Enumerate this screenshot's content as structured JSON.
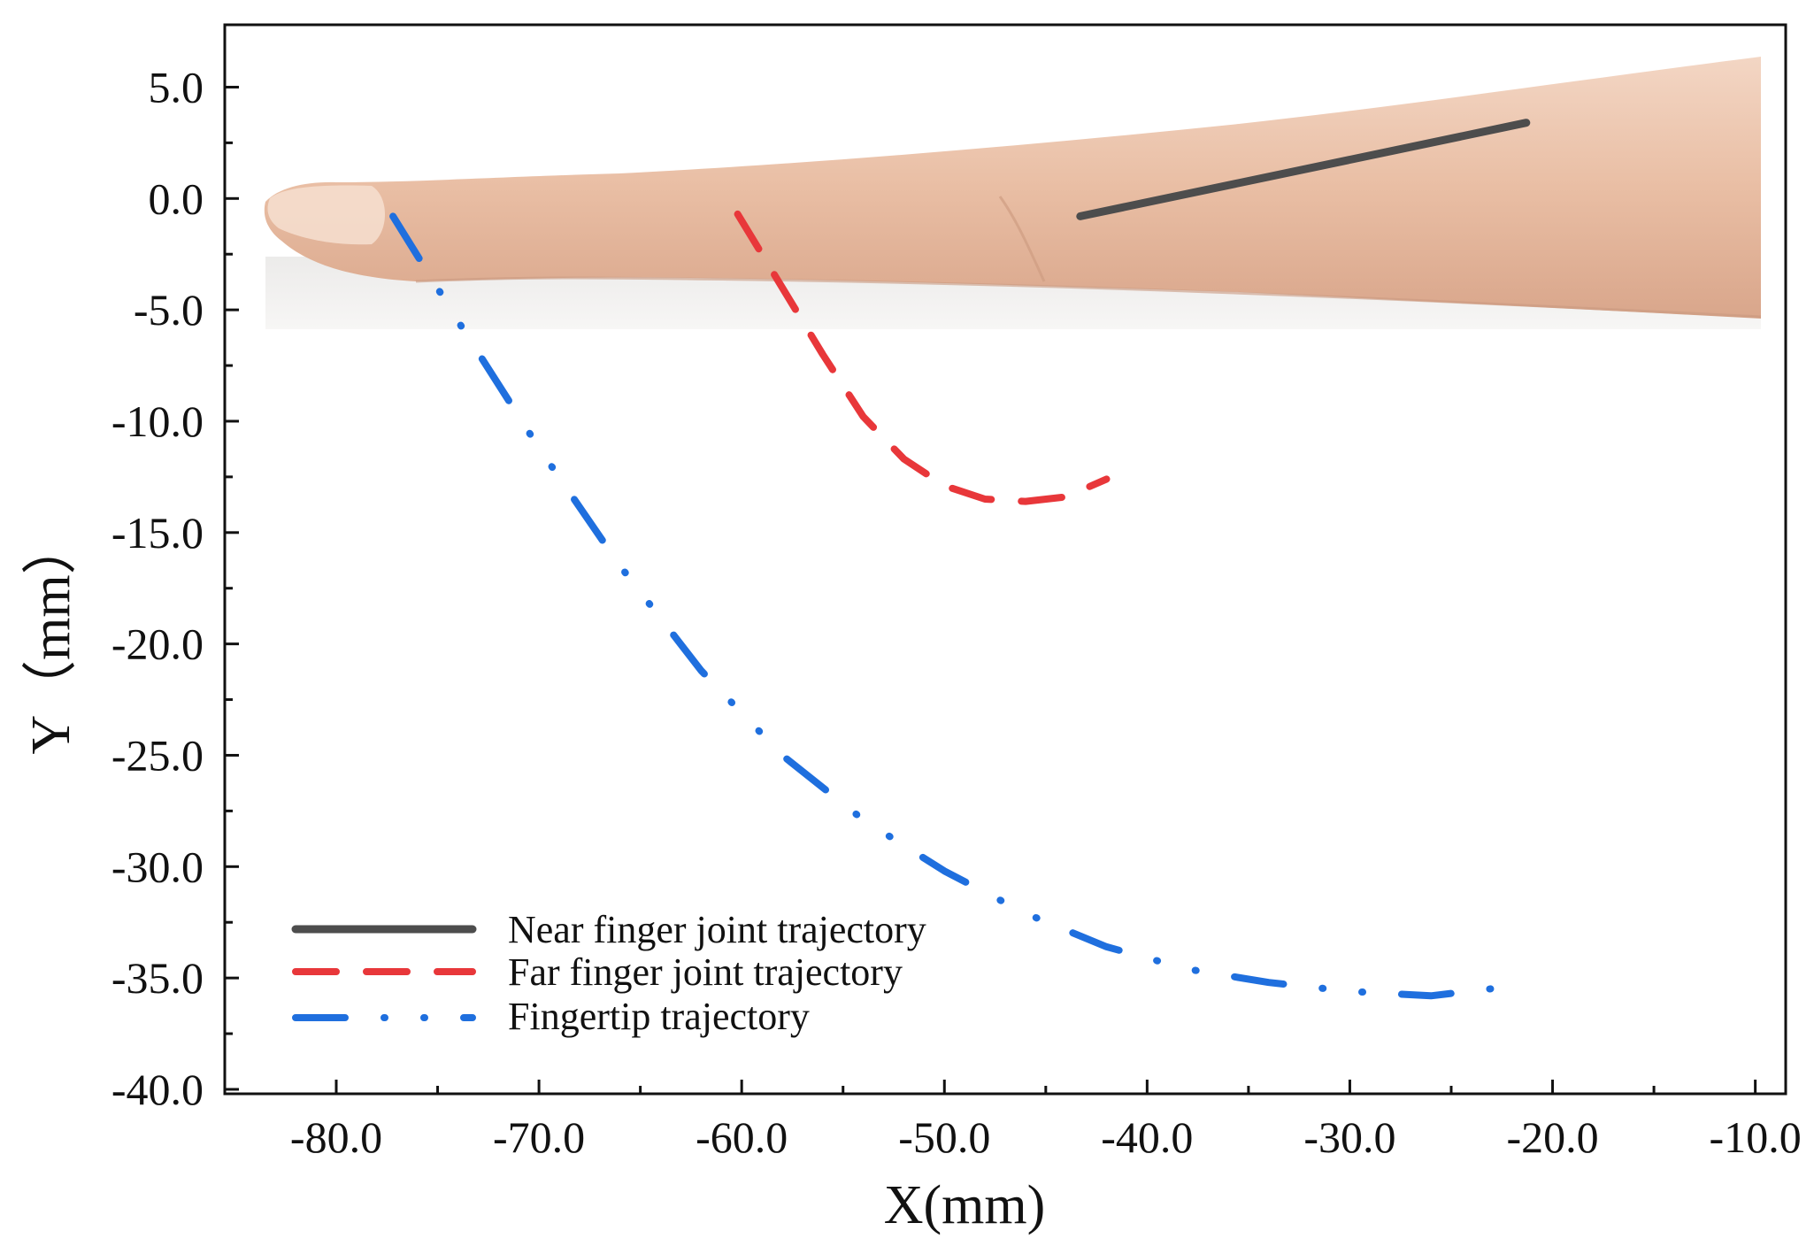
{
  "chart_data": {
    "type": "line",
    "title": "",
    "xlabel": "X(mm)",
    "ylabel": "Y（mm）",
    "xlim": [
      -85.5,
      -8.5
    ],
    "ylim": [
      -40.2,
      7.8
    ],
    "xticks": [
      -80,
      -70,
      -60,
      -50,
      -40,
      -30,
      -20,
      -10
    ],
    "xtick_labels": [
      "-80.0",
      "-70.0",
      "-60.0",
      "-50.0",
      "-40.0",
      "-30.0",
      "-20.0",
      "-10.0"
    ],
    "yticks": [
      5,
      0,
      -5,
      -10,
      -15,
      -20,
      -25,
      -30,
      -35,
      -40
    ],
    "ytick_labels": [
      "5.0",
      "0.0",
      "-5.0",
      "-10.0",
      "-15.0",
      "-20.0",
      "-25.0",
      "-30.0",
      "-35.0",
      "-40.0"
    ],
    "grid": false,
    "legend_position": "bottom-left",
    "background_image": "photo of a human finger",
    "series": [
      {
        "name": "Near finger joint trajectory",
        "color": "#4d4d4d",
        "style": "solid",
        "x": [
          -43.3,
          -21.3
        ],
        "y": [
          -0.8,
          3.4
        ]
      },
      {
        "name": "Far finger joint trajectory",
        "color": "#e8373a",
        "style": "dash",
        "x": [
          -60.2,
          -58.0,
          -56.0,
          -54.0,
          -52.0,
          -50.0,
          -48.0,
          -46.0,
          -44.0,
          -42.0
        ],
        "y": [
          -0.7,
          -4.0,
          -7.0,
          -9.8,
          -11.7,
          -12.9,
          -13.5,
          -13.6,
          -13.4,
          -12.6
        ]
      },
      {
        "name": "Fingertip trajectory",
        "color": "#1f6fde",
        "style": "dash-dot-dot",
        "x": [
          -77.2,
          -74.0,
          -70.0,
          -66.0,
          -62.0,
          -58.0,
          -54.0,
          -50.0,
          -46.0,
          -42.0,
          -38.0,
          -34.0,
          -30.0,
          -26.0,
          -21.3
        ],
        "y": [
          -0.8,
          -5.5,
          -11.2,
          -16.5,
          -21.2,
          -25.0,
          -27.9,
          -30.2,
          -32.1,
          -33.6,
          -34.6,
          -35.2,
          -35.6,
          -35.8,
          -35.3
        ]
      }
    ]
  }
}
